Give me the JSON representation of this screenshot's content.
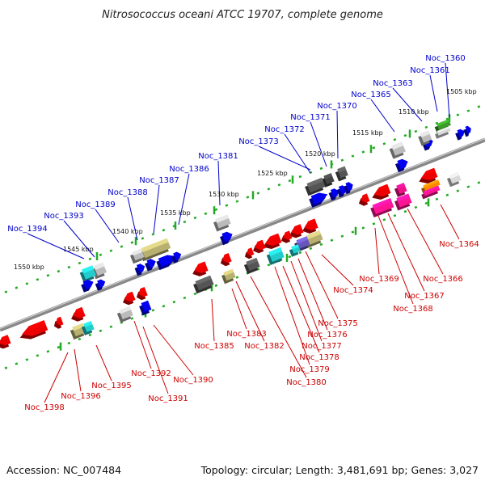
{
  "title": "Nitrosococcus oceani ATCC 19707, complete genome",
  "footer": {
    "accession": "Accession: NC_007484",
    "summary": "Topology: circular; Length: 3,481,691 bp; Genes: 3,027"
  },
  "ruler_ticks": [
    "1505 kbp",
    "1510 kbp",
    "1515 kbp",
    "1520 kbp",
    "1525 kbp",
    "1530 kbp",
    "1535 kbp",
    "1540 kbp",
    "1545 kbp",
    "1550 kbp"
  ],
  "top_labels": [
    "Noc_1360",
    "Noc_1361",
    "Noc_1363",
    "Noc_1365",
    "Noc_1370",
    "Noc_1371",
    "Noc_1372",
    "Noc_1373",
    "Noc_1381",
    "Noc_1386",
    "Noc_1387",
    "Noc_1388",
    "Noc_1389",
    "Noc_1393",
    "Noc_1394"
  ],
  "bottom_labels": [
    "Noc_1364",
    "Noc_1366",
    "Noc_1367",
    "Noc_1368",
    "Noc_1369",
    "Noc_1374",
    "Noc_1375",
    "Noc_1376",
    "Noc_1377",
    "Noc_1378",
    "Noc_1379",
    "Noc_1380",
    "Noc_1382",
    "Noc_1383",
    "Noc_1385",
    "Noc_1390",
    "Noc_1391",
    "Noc_1392",
    "Noc_1395",
    "Noc_1396",
    "Noc_1398"
  ],
  "colors": {
    "top_label": "#0000cc",
    "bottom_label": "#cc0000",
    "backbone": "#888888",
    "tick": "#22aa22"
  }
}
